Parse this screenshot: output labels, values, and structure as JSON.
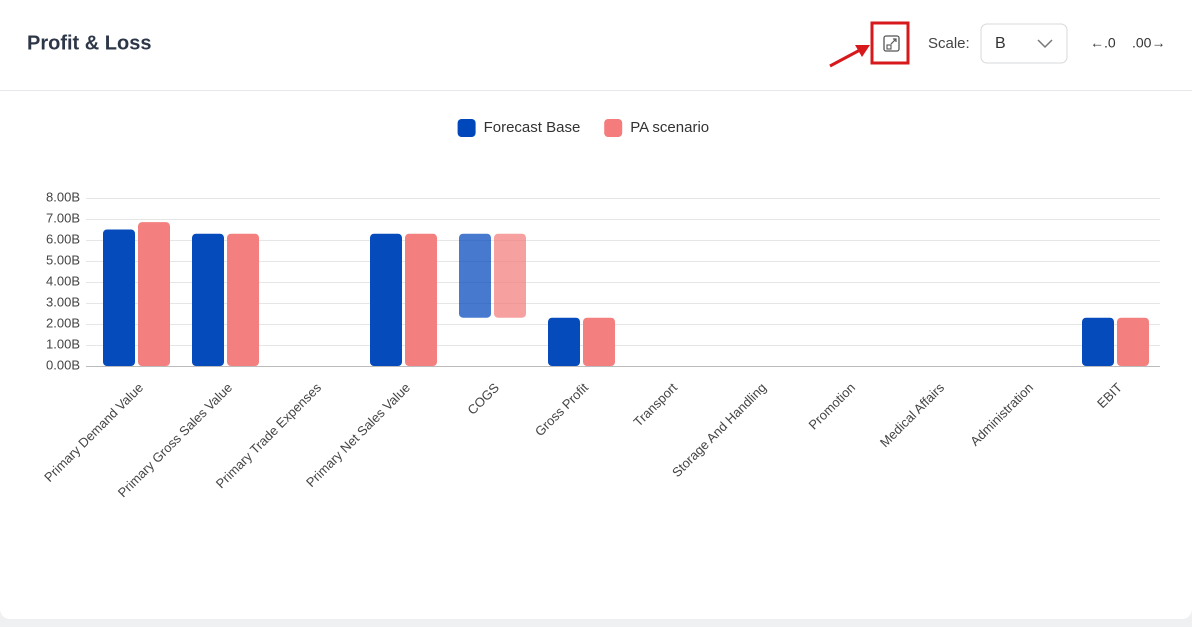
{
  "header": {
    "title": "Profit & Loss",
    "scale_label": "Scale:",
    "scale_value": "B",
    "decrease_decimals": "←.0",
    "increase_decimals": ".00→"
  },
  "chart_data": {
    "type": "bar",
    "categories": [
      "Primary Demand Value",
      "Primary Gross Sales Value",
      "Primary Trade Expenses",
      "Primary Net Sales Value",
      "COGS",
      "Gross Profit",
      "Transport",
      "Storage And Handling",
      "Promotion",
      "Medical Affairs",
      "Administration",
      "EBIT"
    ],
    "series": [
      {
        "name": "Forecast Base",
        "color": "#0047bb",
        "values": [
          6.5,
          6.3,
          null,
          6.3,
          [
            2.3,
            6.3
          ],
          2.3,
          null,
          null,
          null,
          null,
          null,
          2.3
        ]
      },
      {
        "name": "PA scenario",
        "color": "#f47c7c",
        "values": [
          6.85,
          6.3,
          null,
          6.3,
          [
            2.3,
            6.3
          ],
          2.3,
          null,
          null,
          null,
          null,
          null,
          2.3
        ]
      }
    ],
    "ylim": [
      0,
      8
    ],
    "yticks": [
      {
        "value": 0,
        "label": "0.00B"
      },
      {
        "value": 1,
        "label": "1.00B"
      },
      {
        "value": 2,
        "label": "2.00B"
      },
      {
        "value": 3,
        "label": "3.00B"
      },
      {
        "value": 4,
        "label": "4.00B"
      },
      {
        "value": 5,
        "label": "5.00B"
      },
      {
        "value": 6,
        "label": "6.00B"
      },
      {
        "value": 7,
        "label": "7.00B"
      },
      {
        "value": 8,
        "label": "8.00B"
      }
    ],
    "grid": true,
    "legend": "top"
  }
}
